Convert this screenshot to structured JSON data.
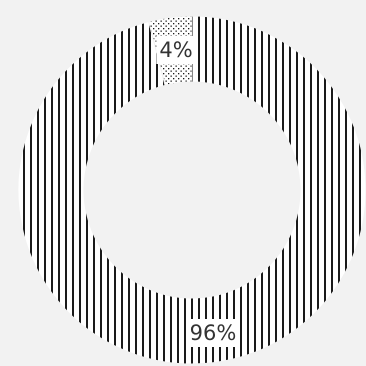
{
  "chart_data": {
    "type": "pie",
    "variant": "donut",
    "slices": [
      {
        "value": 96,
        "label": "96%",
        "pattern": "vertical-lines"
      },
      {
        "value": 4,
        "label": "4%",
        "pattern": "dots"
      }
    ],
    "title": "",
    "legend": "none",
    "colors": {
      "background": "#f2f2f2",
      "pattern_ink": "#1a1a1a",
      "pattern_fill": "#ffffff",
      "label_text": "#333333",
      "label_box": "#ffffff"
    }
  }
}
